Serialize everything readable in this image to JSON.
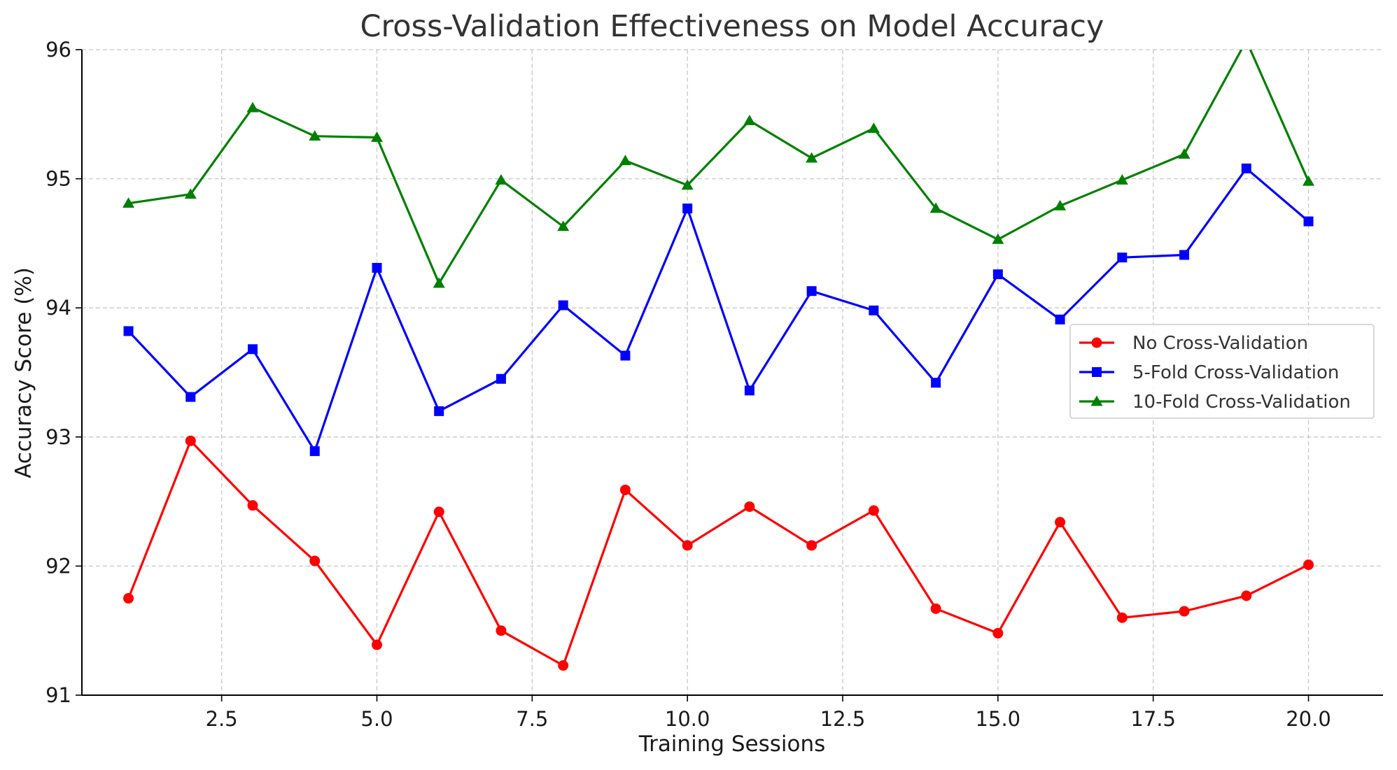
{
  "chart_data": {
    "type": "line",
    "title": "Cross-Validation Effectiveness on Model Accuracy",
    "xlabel": "Training Sessions",
    "ylabel": "Accuracy Score (%)",
    "xlim": [
      0.25,
      21.2
    ],
    "ylim": [
      91,
      96
    ],
    "xticks": [
      2.5,
      5.0,
      7.5,
      10.0,
      12.5,
      15.0,
      17.5,
      20.0
    ],
    "xtick_labels": [
      "2.5",
      "5.0",
      "7.5",
      "10.0",
      "12.5",
      "15.0",
      "17.5",
      "20.0"
    ],
    "yticks": [
      91,
      92,
      93,
      94,
      95,
      96
    ],
    "ytick_labels": [
      "91",
      "92",
      "93",
      "94",
      "95",
      "96"
    ],
    "grid": true,
    "legend_position": "right",
    "x": [
      1,
      2,
      3,
      4,
      5,
      6,
      7,
      8,
      9,
      10,
      11,
      12,
      13,
      14,
      15,
      16,
      17,
      18,
      19,
      20
    ],
    "series": [
      {
        "name": "No Cross-Validation",
        "color": "#ff0000",
        "marker": "circle",
        "values": [
          91.75,
          92.97,
          92.47,
          92.04,
          91.39,
          92.42,
          91.5,
          91.23,
          92.59,
          92.16,
          92.46,
          92.16,
          92.43,
          91.67,
          91.48,
          92.34,
          91.6,
          91.65,
          91.77,
          92.01
        ]
      },
      {
        "name": "5-Fold Cross-Validation",
        "color": "#0000ff",
        "marker": "square",
        "values": [
          93.82,
          93.31,
          93.68,
          92.89,
          94.31,
          93.2,
          93.45,
          94.02,
          93.63,
          94.77,
          93.36,
          94.13,
          93.98,
          93.42,
          94.26,
          93.91,
          94.39,
          94.41,
          95.08,
          94.67
        ]
      },
      {
        "name": "10-Fold Cross-Validation",
        "color": "#008000",
        "marker": "triangle",
        "values": [
          94.81,
          94.88,
          95.55,
          95.33,
          95.32,
          94.19,
          94.99,
          94.63,
          95.14,
          94.95,
          95.45,
          95.16,
          95.39,
          94.77,
          94.53,
          94.79,
          94.99,
          95.19,
          96.07,
          94.98
        ]
      }
    ]
  }
}
